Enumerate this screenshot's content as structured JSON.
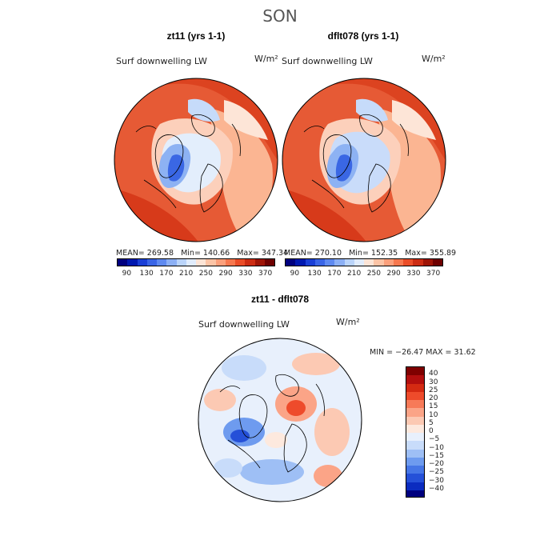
{
  "figure": {
    "suptitle": "SON",
    "diff_title": "zt11 - dflt078",
    "diff_minmax": "MIN = −26.47 MAX =  31.62"
  },
  "panels": [
    {
      "title": "zt11 (yrs 1-1)",
      "varname": "Surf downwelling LW",
      "units": "W/m²",
      "stats": {
        "mean": "MEAN= 269.58",
        "min": "Min= 140.66",
        "max": "Max= 347.34"
      }
    },
    {
      "title": "dflt078 (yrs 1-1)",
      "varname": "Surf downwelling LW",
      "units": "W/m²",
      "stats": {
        "mean": "MEAN= 270.10",
        "min": "Min= 152.35",
        "max": "Max= 355.89"
      }
    },
    {
      "title": "zt11 - dflt078",
      "varname": "Surf downwelling LW",
      "units": "W/m²"
    }
  ],
  "chart_data": [
    {
      "type": "heatmap",
      "title": "zt11 (yrs 1-1)",
      "projection": "north-polar-stereographic",
      "variable": "Surf downwelling LW",
      "units": "W/m²",
      "mean": 269.58,
      "min": 140.66,
      "max": 347.34,
      "colorbar": {
        "orientation": "horizontal",
        "levels": [
          90,
          110,
          130,
          150,
          170,
          190,
          210,
          230,
          250,
          270,
          290,
          310,
          330,
          350,
          370
        ],
        "tick_labels": [
          "90",
          "130",
          "170",
          "210",
          "250",
          "290",
          "330",
          "370"
        ],
        "colors": [
          "#00007f",
          "#0018b0",
          "#1a3fd6",
          "#3a65e6",
          "#5f8af0",
          "#8cb0f5",
          "#bad4fa",
          "#e0ecfd",
          "#fce4d6",
          "#fcc4a6",
          "#fba07c",
          "#f6784f",
          "#ea4d28",
          "#cc2c13",
          "#9e1406",
          "#6e0000"
        ]
      }
    },
    {
      "type": "heatmap",
      "title": "dflt078 (yrs 1-1)",
      "projection": "north-polar-stereographic",
      "variable": "Surf downwelling LW",
      "units": "W/m²",
      "mean": 270.1,
      "min": 152.35,
      "max": 355.89,
      "colorbar": {
        "orientation": "horizontal",
        "levels": [
          90,
          110,
          130,
          150,
          170,
          190,
          210,
          230,
          250,
          270,
          290,
          310,
          330,
          350,
          370
        ],
        "tick_labels": [
          "90",
          "130",
          "170",
          "210",
          "250",
          "290",
          "330",
          "370"
        ],
        "colors": [
          "#00007f",
          "#0018b0",
          "#1a3fd6",
          "#3a65e6",
          "#5f8af0",
          "#8cb0f5",
          "#bad4fa",
          "#e0ecfd",
          "#fce4d6",
          "#fcc4a6",
          "#fba07c",
          "#f6784f",
          "#ea4d28",
          "#cc2c13",
          "#9e1406",
          "#6e0000"
        ]
      }
    },
    {
      "type": "heatmap",
      "title": "zt11 - dflt078",
      "projection": "north-polar-stereographic",
      "variable": "Surf downwelling LW",
      "units": "W/m²",
      "min": -26.47,
      "max": 31.62,
      "colorbar": {
        "orientation": "vertical",
        "levels": [
          -40,
          -30,
          -25,
          -20,
          -15,
          -10,
          -5,
          0,
          5,
          10,
          15,
          20,
          25,
          30,
          40
        ],
        "tick_labels": [
          "40",
          "30",
          "25",
          "20",
          "15",
          "10",
          "5",
          "0",
          "−5",
          "−10",
          "−15",
          "−20",
          "−25",
          "−30",
          "−40"
        ],
        "colors": [
          "#7f0000",
          "#b20e0e",
          "#d42a12",
          "#ee4b2b",
          "#f77a58",
          "#fba487",
          "#fcc9b3",
          "#fde9de",
          "#e8f0fc",
          "#c8dcfa",
          "#9ebff5",
          "#6e9bef",
          "#4676e6",
          "#2550d8",
          "#0b2cc0",
          "#00007f"
        ]
      }
    }
  ]
}
